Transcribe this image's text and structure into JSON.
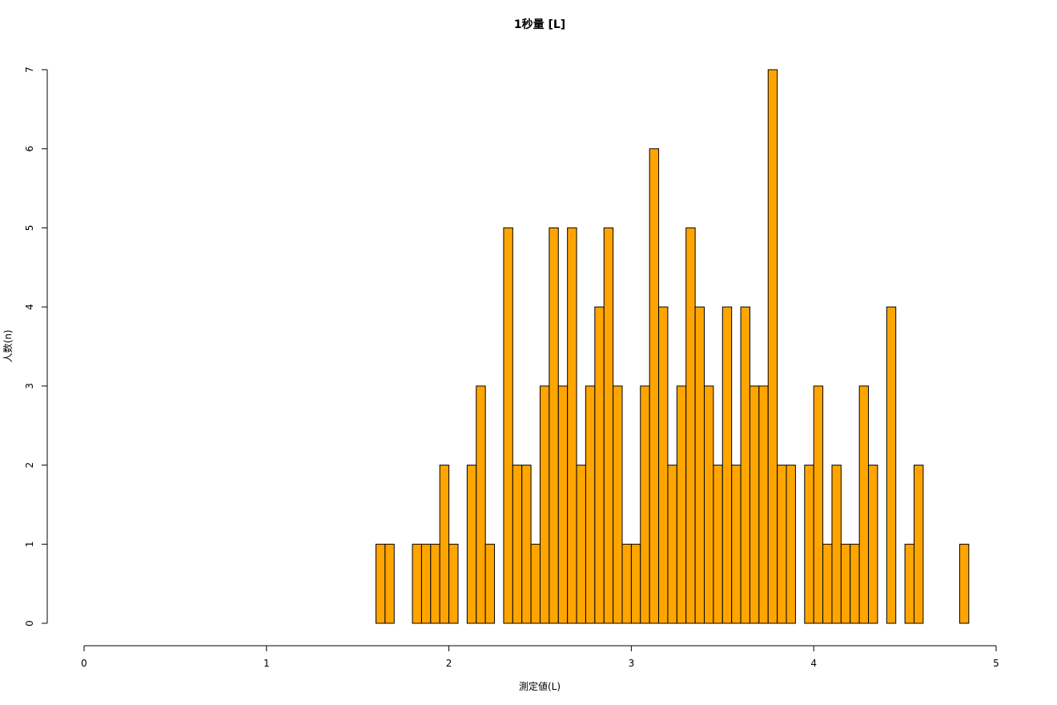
{
  "chart_data": {
    "type": "histogram",
    "title": "1秒量 [L]",
    "x_label": "測定値(L)",
    "y_label": "人数(n)",
    "color": "#ffa500",
    "bins": [
      1.6,
      1.65,
      1.7,
      1.75,
      1.8,
      1.85,
      1.9,
      1.95,
      2.0,
      2.05,
      2.1,
      2.15,
      2.2,
      2.25,
      2.3,
      2.35,
      2.4,
      2.45,
      2.5,
      2.55,
      2.6,
      2.65,
      2.7,
      2.75,
      2.8,
      2.85,
      2.9,
      2.95,
      3.0,
      3.05,
      3.1,
      3.15,
      3.2,
      3.25,
      3.3,
      3.35,
      3.4,
      3.45,
      3.5,
      3.55,
      3.6,
      3.65,
      3.7,
      3.75,
      3.8,
      3.85,
      3.9,
      3.95,
      4.0,
      4.05,
      4.1,
      4.15,
      4.2,
      4.25,
      4.3,
      4.35,
      4.4,
      4.45,
      4.5,
      4.55,
      4.6,
      4.65,
      4.7,
      4.75,
      4.8,
      4.85
    ],
    "values": [
      1,
      1,
      0,
      0,
      1,
      1,
      1,
      2,
      1,
      0,
      2,
      3,
      1,
      0,
      5,
      2,
      2,
      1,
      3,
      5,
      3,
      5,
      2,
      3,
      4,
      5,
      3,
      1,
      1,
      3,
      6,
      4,
      2,
      3,
      5,
      4,
      3,
      2,
      4,
      2,
      4,
      3,
      3,
      7,
      2,
      2,
      0,
      2,
      3,
      1,
      2,
      1,
      1,
      3,
      2,
      0,
      4,
      0,
      1,
      2,
      0,
      0,
      0,
      0,
      1
    ],
    "xlim": [
      0,
      5
    ],
    "xticks": [
      0,
      1,
      2,
      3,
      4,
      5
    ],
    "ylim": [
      0,
      7
    ],
    "yticks": [
      0,
      1,
      2,
      3,
      4,
      5,
      6,
      7
    ]
  }
}
